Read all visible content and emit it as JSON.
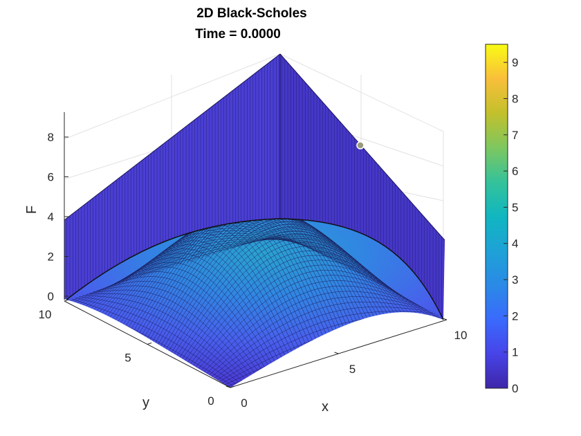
{
  "chart_data": {
    "type": "surface",
    "title": "2D Black-Scholes",
    "subtitle": "Time = 0.0000",
    "xlabel": "x",
    "ylabel": "y",
    "zlabel": "F",
    "xlim": [
      0,
      10
    ],
    "ylim": [
      0,
      10
    ],
    "zlim": [
      0,
      9.5
    ],
    "x_ticks": [
      "0",
      "5",
      "10"
    ],
    "y_ticks": [
      "0",
      "5",
      "10"
    ],
    "z_ticks": [
      "0",
      "2",
      "4",
      "6",
      "8"
    ],
    "colorbar": {
      "range": [
        0,
        9.5
      ],
      "ticks": [
        "0",
        "1",
        "2",
        "3",
        "4",
        "5",
        "6",
        "7",
        "8",
        "9"
      ],
      "colormap": "parula"
    },
    "grid": true,
    "surface_description": "Option payoff surface: F = max(x, y) - 5 for max(x,y) > 5, with a low smooth dome in the interior; F rises to about 9.5 at the far corner (x=10, y=10) and about 4 at the corners (10,0) and (0,10); F = 0 at the origin.",
    "peak_value": 9.5
  }
}
